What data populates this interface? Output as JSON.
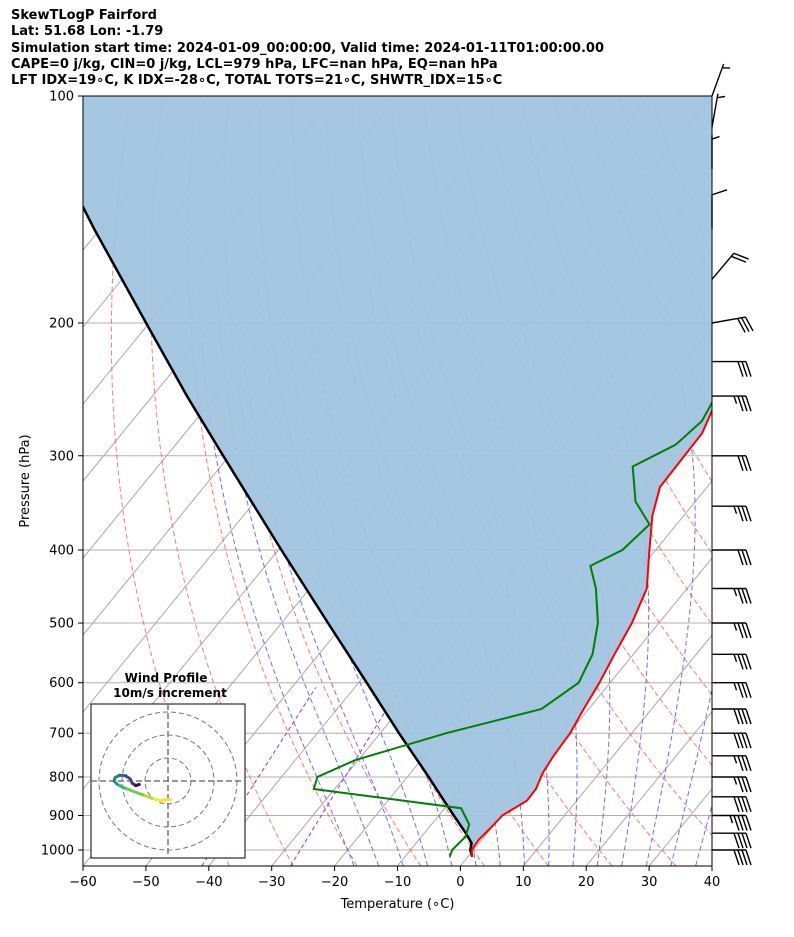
{
  "header": {
    "line1": "SkewTLogP Fairford",
    "line2": "Lat: 51.68   Lon: -1.79",
    "line3": "Simulation start time: 2024-01-09_00:00:00, Valid time: 2024-01-11T01:00:00.00",
    "line4": "CAPE=0 j/kg, CIN=0 j/kg, LCL=979 hPa, LFC=nan hPa, EQ=nan hPa",
    "line5": "LFT IDX=19∘C, K IDX=-28∘C, TOTAL TOTS=21∘C, SHWTR_IDX=15∘C"
  },
  "colors": {
    "temperature": "#ff0000",
    "dewpoint": "#008000",
    "parcel": "#000000",
    "cape_fill": "#a0c4df",
    "dry_adiabat": "#ff5555",
    "moist_adiabat": "#5555ff",
    "isotherm": "#aaaaaa",
    "mixing_ratio": "#9933cc"
  },
  "chart_data": {
    "type": "line",
    "subtype": "skew-T log-P diagram",
    "xlabel": "Temperature (∘C)",
    "ylabel": "Pressure (hPa)",
    "xlim": [
      -60,
      40
    ],
    "ylim": [
      1050,
      100
    ],
    "y_scale": "log",
    "grid": true,
    "xticks": [
      -60,
      -50,
      -40,
      -30,
      -20,
      -10,
      0,
      10,
      20,
      30,
      40
    ],
    "xtick_labels": [
      "−60",
      "−50",
      "−40",
      "−30",
      "−20",
      "−10",
      "0",
      "10",
      "20",
      "30",
      "40"
    ],
    "yticks": [
      1000,
      900,
      800,
      700,
      600,
      500,
      400,
      300,
      200,
      100
    ],
    "ytick_labels": [
      "1000",
      "900",
      "800",
      "700",
      "600",
      "500",
      "400",
      "300",
      "200",
      "100"
    ],
    "series": [
      {
        "key": "temperature",
        "points": [
          [
            1021,
            0.7
          ],
          [
            1000,
            -0.3
          ],
          [
            970,
            -0.5
          ],
          [
            930,
            -0.1
          ],
          [
            900,
            0.1
          ],
          [
            860,
            2.1
          ],
          [
            830,
            2.0
          ],
          [
            790,
            1.0
          ],
          [
            750,
            0.5
          ],
          [
            700,
            0.2
          ],
          [
            650,
            -0.8
          ],
          [
            600,
            -1.7
          ],
          [
            550,
            -3.0
          ],
          [
            500,
            -4.3
          ],
          [
            450,
            -6.4
          ],
          [
            400,
            -11.0
          ],
          [
            360,
            -15.0
          ],
          [
            330,
            -17.5
          ],
          [
            280,
            -17.8
          ],
          [
            250,
            -20.0
          ],
          [
            230,
            -20.5
          ],
          [
            200,
            -23.5
          ],
          [
            170,
            -28.0
          ],
          [
            150,
            -31.0
          ],
          [
            135,
            -33.5
          ],
          [
            125,
            -37.0
          ],
          [
            112,
            -42.0
          ],
          [
            100,
            -48.0
          ]
        ]
      },
      {
        "key": "dewpoint",
        "points": [
          [
            1021,
            -2.9
          ],
          [
            1000,
            -3.4
          ],
          [
            960,
            -3.0
          ],
          [
            925,
            -4.0
          ],
          [
            880,
            -7.4
          ],
          [
            830,
            -33.3
          ],
          [
            800,
            -34.3
          ],
          [
            760,
            -30.5
          ],
          [
            700,
            -19.5
          ],
          [
            650,
            -7.5
          ],
          [
            600,
            -5.0
          ],
          [
            550,
            -6.5
          ],
          [
            500,
            -9.7
          ],
          [
            450,
            -14.5
          ],
          [
            420,
            -18.3
          ],
          [
            400,
            -15.3
          ],
          [
            370,
            -14.3
          ],
          [
            345,
            -19.5
          ],
          [
            310,
            -24.5
          ],
          [
            290,
            -20.5
          ],
          [
            270,
            -19.4
          ],
          [
            240,
            -21.0
          ],
          [
            210,
            -27.8
          ],
          [
            180,
            -29.3
          ],
          [
            160,
            -34.0
          ],
          [
            140,
            -38.0
          ],
          [
            120,
            -45.0
          ],
          [
            100,
            -54.5
          ]
        ]
      },
      {
        "key": "parcel",
        "points": [
          [
            1021,
            0.7
          ],
          [
            1000,
            -0.5
          ],
          [
            979,
            -1.2
          ],
          [
            950,
            -3.4
          ],
          [
            900,
            -7.6
          ],
          [
            850,
            -12.0
          ],
          [
            800,
            -16.6
          ],
          [
            700,
            -27.0
          ],
          [
            600,
            -38.7
          ],
          [
            500,
            -52.6
          ],
          [
            400,
            -69.5
          ],
          [
            300,
            -91.0
          ],
          [
            250,
            -104.5
          ],
          [
            200,
            -120.5
          ],
          [
            150,
            -141.0
          ],
          [
            100,
            -169.0
          ]
        ]
      }
    ],
    "wind_barbs": [
      {
        "p": 1000,
        "speed": 40,
        "dir": 270
      },
      {
        "p": 950,
        "speed": 40,
        "dir": 270
      },
      {
        "p": 900,
        "speed": 45,
        "dir": 270
      },
      {
        "p": 850,
        "speed": 40,
        "dir": 270
      },
      {
        "p": 800,
        "speed": 35,
        "dir": 270
      },
      {
        "p": 750,
        "speed": 35,
        "dir": 270
      },
      {
        "p": 700,
        "speed": 40,
        "dir": 270
      },
      {
        "p": 650,
        "speed": 40,
        "dir": 270
      },
      {
        "p": 600,
        "speed": 35,
        "dir": 270
      },
      {
        "p": 550,
        "speed": 35,
        "dir": 270
      },
      {
        "p": 500,
        "speed": 35,
        "dir": 270
      },
      {
        "p": 450,
        "speed": 35,
        "dir": 270
      },
      {
        "p": 400,
        "speed": 30,
        "dir": 270
      },
      {
        "p": 350,
        "speed": 35,
        "dir": 270
      },
      {
        "p": 300,
        "speed": 30,
        "dir": 270
      },
      {
        "p": 250,
        "speed": 35,
        "dir": 270
      },
      {
        "p": 225,
        "speed": 30,
        "dir": 270
      },
      {
        "p": 200,
        "speed": 30,
        "dir": 260
      },
      {
        "p": 175,
        "speed": 20,
        "dir": 220
      },
      {
        "p": 150,
        "speed": 10,
        "dir": 180
      },
      {
        "p": 125,
        "speed": 5,
        "dir": 180
      },
      {
        "p": 110,
        "speed": 5,
        "dir": 190
      },
      {
        "p": 100,
        "speed": 5,
        "dir": 200
      }
    ],
    "hodograph": {
      "title_line1": "Wind Profile",
      "title_line2": "10m/s increment",
      "ring_increment_ms": 10,
      "rings": [
        10,
        20,
        30
      ],
      "trace": [
        [
          1.0,
          -8.0
        ],
        [
          -3.0,
          -8.5
        ],
        [
          -7.0,
          -7.5
        ],
        [
          -11.0,
          -6.0
        ],
        [
          -15.0,
          -4.5
        ],
        [
          -19.0,
          -3.0
        ],
        [
          -22.0,
          -1.5
        ],
        [
          -23.5,
          0.0
        ],
        [
          -23.0,
          1.5
        ],
        [
          -21.0,
          2.5
        ],
        [
          -18.5,
          2.3
        ],
        [
          -16.5,
          1.0
        ],
        [
          -15.5,
          -1.0
        ],
        [
          -14.0,
          -2.0
        ],
        [
          -12.5,
          -1.5
        ]
      ]
    }
  }
}
